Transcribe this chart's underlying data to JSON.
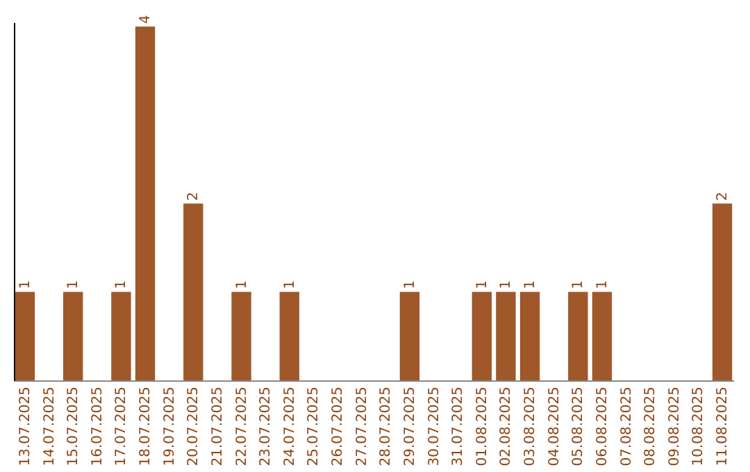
{
  "chart_data": {
    "type": "bar",
    "categories": [
      "13.07.2025",
      "14.07.2025",
      "15.07.2025",
      "16.07.2025",
      "17.07.2025",
      "18.07.2025",
      "19.07.2025",
      "20.07.2025",
      "21.07.2025",
      "22.07.2025",
      "23.07.2025",
      "24.07.2025",
      "25.07.2025",
      "26.07.2025",
      "27.07.2025",
      "28.07.2025",
      "29.07.2025",
      "30.07.2025",
      "31.07.2025",
      "01.08.2025",
      "02.08.2025",
      "03.08.2025",
      "04.08.2025",
      "05.08.2025",
      "06.08.2025",
      "07.08.2025",
      "08.08.2025",
      "09.08.2025",
      "10.08.2025",
      "11.08.2025"
    ],
    "values": [
      1,
      0,
      1,
      0,
      1,
      4,
      0,
      2,
      0,
      1,
      0,
      1,
      0,
      0,
      0,
      0,
      1,
      0,
      0,
      1,
      1,
      1,
      0,
      1,
      1,
      0,
      0,
      0,
      0,
      2
    ],
    "value_labels": [
      "1",
      null,
      "1",
      null,
      "1",
      "4",
      null,
      "2",
      null,
      "1",
      null,
      "1",
      null,
      null,
      null,
      null,
      "1",
      null,
      null,
      "1",
      "1",
      "1",
      null,
      "1",
      "1",
      null,
      null,
      null,
      null,
      "2"
    ],
    "color": "#a0582a",
    "ylim": [
      0,
      4.05
    ],
    "tick_labels": "x",
    "grid": false
  }
}
